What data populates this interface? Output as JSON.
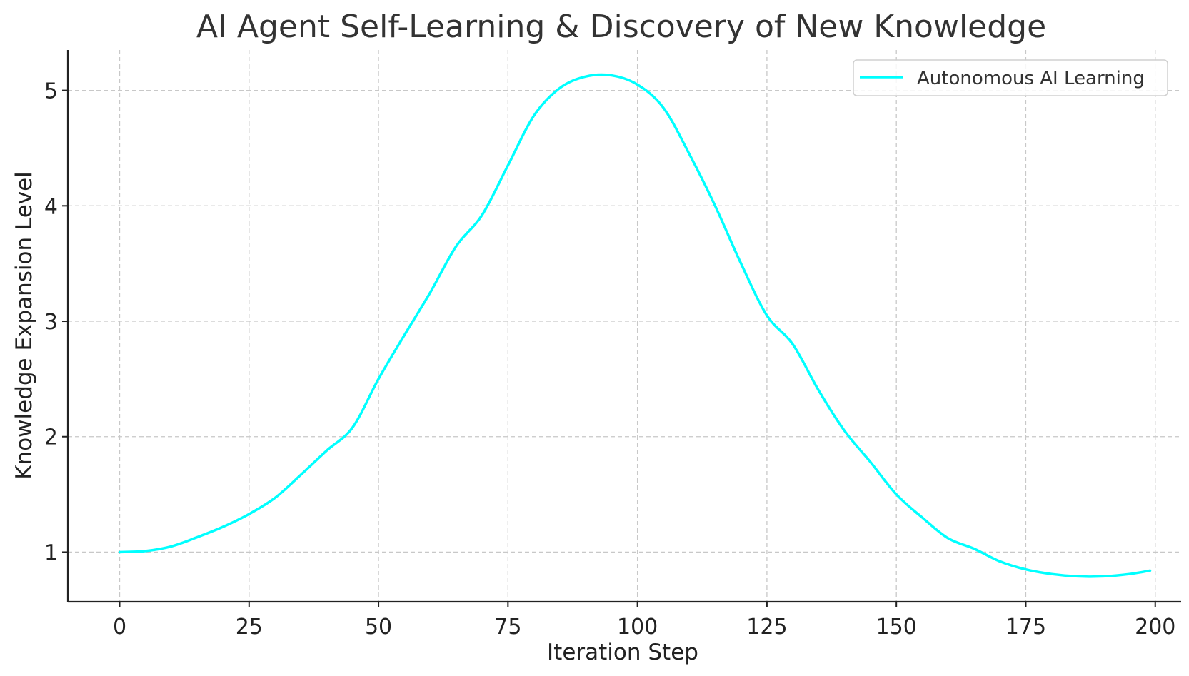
{
  "chart_data": {
    "type": "line",
    "title": "AI Agent Self-Learning & Discovery of New Knowledge",
    "xlabel": "Iteration Step",
    "ylabel": "Knowledge Expansion Level",
    "xlim": [
      -10,
      205
    ],
    "ylim": [
      0.57,
      5.35
    ],
    "xticks": [
      0,
      25,
      50,
      75,
      100,
      125,
      150,
      175,
      200
    ],
    "yticks": [
      1,
      2,
      3,
      4,
      5
    ],
    "grid": true,
    "legend_position": "top-right",
    "colors": {
      "line": "#00ffff",
      "grid": "#c8c8c8",
      "axis": "#222222",
      "title": "#333333"
    },
    "series": [
      {
        "name": "Autonomous AI Learning",
        "x": [
          0,
          5,
          10,
          15,
          20,
          25,
          30,
          35,
          40,
          45,
          50,
          55,
          60,
          65,
          70,
          75,
          80,
          85,
          90,
          95,
          100,
          105,
          110,
          115,
          120,
          125,
          130,
          135,
          140,
          145,
          150,
          155,
          160,
          165,
          170,
          175,
          180,
          185,
          190,
          195,
          199
        ],
        "y": [
          1.0,
          1.01,
          1.05,
          1.13,
          1.22,
          1.33,
          1.47,
          1.67,
          1.88,
          2.08,
          2.5,
          2.88,
          3.25,
          3.65,
          3.92,
          4.35,
          4.78,
          5.02,
          5.12,
          5.13,
          5.05,
          4.85,
          4.45,
          4.0,
          3.5,
          3.05,
          2.8,
          2.4,
          2.05,
          1.78,
          1.5,
          1.3,
          1.12,
          1.03,
          0.92,
          0.85,
          0.81,
          0.79,
          0.79,
          0.81,
          0.84
        ]
      }
    ]
  }
}
